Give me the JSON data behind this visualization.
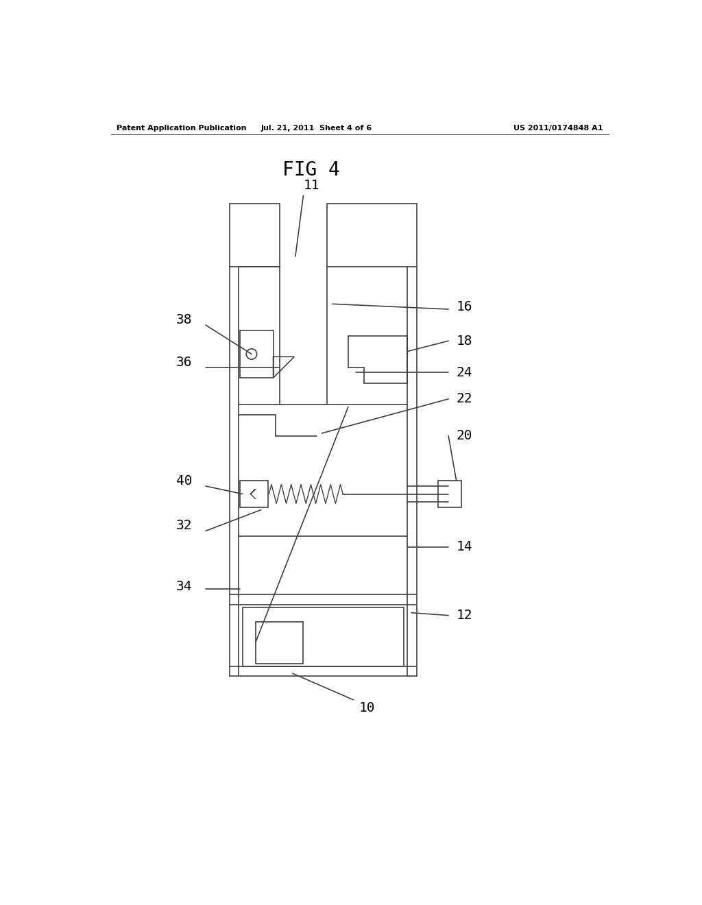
{
  "bg_color": "#ffffff",
  "line_color": "#404040",
  "header_left": "Patent Application Publication",
  "header_center": "Jul. 21, 2011  Sheet 4 of 6",
  "header_right": "US 2011/0174848 A1",
  "fig_title": "FIG 4"
}
